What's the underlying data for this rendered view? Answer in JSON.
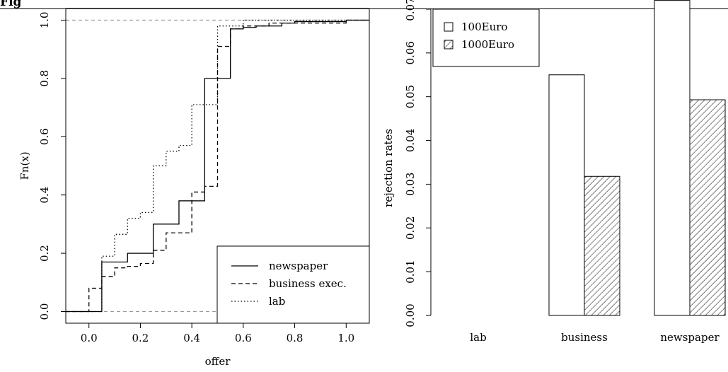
{
  "caption": "Fig",
  "chart_data": [
    {
      "type": "step",
      "title": "",
      "xlabel": "offer",
      "ylabel": "Fn(x)",
      "xlim": [
        -0.09,
        1.09
      ],
      "ylim": [
        -0.04,
        1.04
      ],
      "x_ticks": [
        "0.0",
        "0.2",
        "0.4",
        "0.6",
        "0.8",
        "1.0"
      ],
      "y_ticks": [
        "0.0",
        "0.2",
        "0.4",
        "0.6",
        "0.8",
        "1.0"
      ],
      "reference_lines": [
        0,
        1
      ],
      "legend": {
        "position": "bottom-right"
      },
      "series": [
        {
          "name": "newspaper",
          "line": "solid",
          "points": [
            [
              -0.09,
              0
            ],
            [
              0.05,
              0.17
            ],
            [
              0.15,
              0.2
            ],
            [
              0.25,
              0.3
            ],
            [
              0.35,
              0.38
            ],
            [
              0.45,
              0.8
            ],
            [
              0.5,
              0.8
            ],
            [
              0.55,
              0.97
            ],
            [
              0.6,
              0.975
            ],
            [
              0.65,
              0.98
            ],
            [
              0.75,
              0.99
            ],
            [
              0.8,
              0.995
            ],
            [
              1.0,
              1.0
            ],
            [
              1.09,
              1.0
            ]
          ]
        },
        {
          "name": "business exec.",
          "line": "dashed",
          "points": [
            [
              -0.09,
              0
            ],
            [
              0.0,
              0.08
            ],
            [
              0.05,
              0.12
            ],
            [
              0.1,
              0.15
            ],
            [
              0.15,
              0.155
            ],
            [
              0.2,
              0.165
            ],
            [
              0.25,
              0.21
            ],
            [
              0.3,
              0.27
            ],
            [
              0.4,
              0.41
            ],
            [
              0.45,
              0.43
            ],
            [
              0.5,
              0.91
            ],
            [
              0.55,
              0.97
            ],
            [
              0.6,
              0.98
            ],
            [
              0.7,
              0.99
            ],
            [
              1.0,
              1.0
            ],
            [
              1.09,
              1.0
            ]
          ]
        },
        {
          "name": "lab",
          "line": "dotted",
          "points": [
            [
              -0.09,
              0
            ],
            [
              0.05,
              0.19
            ],
            [
              0.1,
              0.265
            ],
            [
              0.15,
              0.32
            ],
            [
              0.2,
              0.34
            ],
            [
              0.25,
              0.5
            ],
            [
              0.3,
              0.55
            ],
            [
              0.35,
              0.57
            ],
            [
              0.4,
              0.71
            ],
            [
              0.45,
              0.71
            ],
            [
              0.5,
              0.98
            ],
            [
              0.6,
              1.0
            ],
            [
              1.09,
              1.0
            ]
          ]
        }
      ]
    },
    {
      "type": "bar",
      "title": "",
      "xlabel": "",
      "ylabel": "rejection rates",
      "ylim": [
        0,
        0.07
      ],
      "y_ticks": [
        "0.00",
        "0.01",
        "0.02",
        "0.03",
        "0.04",
        "0.05",
        "0.06",
        "0.07"
      ],
      "categories": [
        "lab",
        "business",
        "newspaper"
      ],
      "legend": {
        "position": "top-left"
      },
      "series": [
        {
          "name": "100Euro",
          "fill": "white",
          "values": [
            0.0,
            0.055,
            0.072
          ]
        },
        {
          "name": "1000Euro",
          "fill": "hatched",
          "values": [
            0.0,
            0.0318,
            0.0493
          ]
        }
      ]
    }
  ]
}
